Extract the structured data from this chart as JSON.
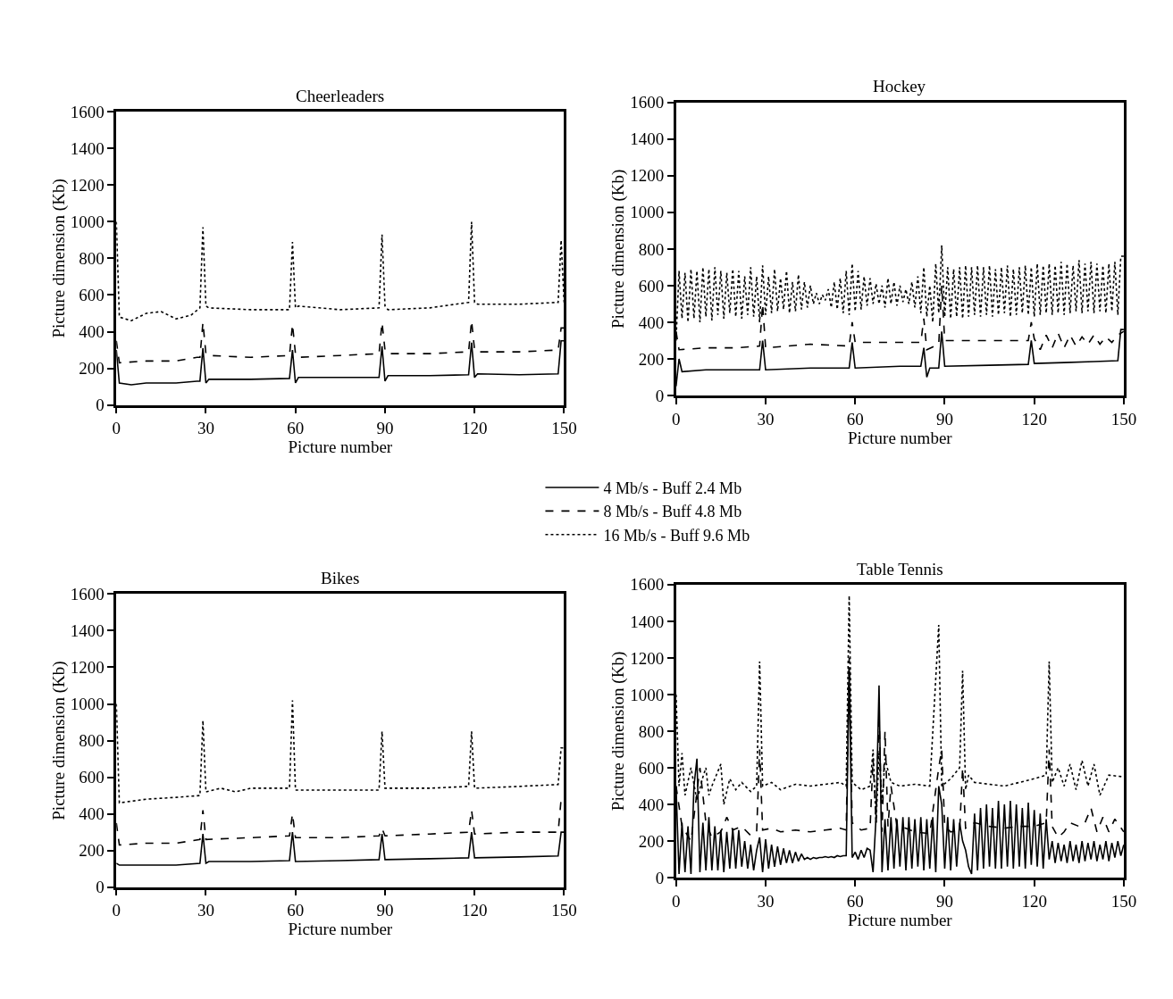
{
  "chart_data": [
    {
      "type": "line",
      "title": "Cheerleaders",
      "xlabel": "Picture number",
      "ylabel": "Picture dimension (Kb)",
      "xlim": [
        0,
        150
      ],
      "xticks": [
        0,
        30,
        60,
        90,
        120,
        150
      ],
      "ylim": [
        0,
        1600
      ],
      "yticks": [
        0,
        200,
        400,
        600,
        800,
        1000,
        1200,
        1400,
        1600
      ],
      "grid": false,
      "legend": "bottom right",
      "marker": "none",
      "series": [
        {
          "name": "4 Mb/s - Buff 2.4 Mb",
          "color": "#000000",
          "line_style": "solid",
          "x": [
            0,
            1,
            5,
            10,
            20,
            27,
            28,
            29,
            30,
            31,
            45,
            58,
            59,
            60,
            61,
            75,
            88,
            89,
            90,
            91,
            105,
            118,
            119,
            120,
            121,
            135,
            148,
            149,
            150
          ],
          "values": [
            300,
            120,
            110,
            120,
            120,
            130,
            130,
            310,
            120,
            140,
            140,
            145,
            300,
            120,
            150,
            150,
            150,
            320,
            130,
            160,
            160,
            165,
            340,
            150,
            170,
            165,
            170,
            350,
            350
          ]
        },
        {
          "name": "8 Mb/s - Buff 4.8 Mb",
          "color": "#000000",
          "line_style": "dashed",
          "x": [
            0,
            1,
            10,
            20,
            27,
            28,
            29,
            30,
            31,
            45,
            58,
            59,
            60,
            61,
            75,
            88,
            89,
            90,
            91,
            105,
            118,
            119,
            120,
            121,
            135,
            148,
            149,
            150
          ],
          "values": [
            350,
            230,
            240,
            240,
            260,
            260,
            450,
            280,
            270,
            260,
            270,
            440,
            280,
            260,
            270,
            280,
            450,
            300,
            280,
            280,
            290,
            460,
            300,
            290,
            290,
            300,
            420,
            420
          ]
        },
        {
          "name": "16 Mb/s - Buff 9.6 Mb",
          "color": "#000000",
          "line_style": "dotted",
          "x": [
            0,
            1,
            5,
            10,
            15,
            20,
            25,
            28,
            29,
            30,
            31,
            45,
            58,
            59,
            60,
            61,
            75,
            88,
            89,
            90,
            91,
            105,
            118,
            119,
            120,
            121,
            135,
            148,
            149,
            150
          ],
          "values": [
            1000,
            480,
            460,
            500,
            510,
            470,
            490,
            530,
            970,
            540,
            530,
            520,
            520,
            890,
            530,
            540,
            520,
            530,
            930,
            540,
            520,
            530,
            560,
            1000,
            560,
            550,
            550,
            560,
            900,
            560
          ]
        }
      ]
    },
    {
      "type": "line",
      "title": "Hockey",
      "xlabel": "Picture number",
      "ylabel": "Picture dimension (Kb)",
      "xlim": [
        0,
        150
      ],
      "xticks": [
        0,
        30,
        60,
        90,
        120,
        150
      ],
      "ylim": [
        0,
        1600
      ],
      "yticks": [
        0,
        200,
        400,
        600,
        800,
        1000,
        1200,
        1400,
        1600
      ],
      "grid": false,
      "marker": "none",
      "series": [
        {
          "color": "#000000",
          "line_style": "solid",
          "x": [
            0,
            1,
            2,
            10,
            28,
            29,
            30,
            45,
            58,
            59,
            60,
            75,
            82,
            83,
            84,
            85,
            88,
            89,
            90,
            105,
            118,
            119,
            120,
            130,
            140,
            148,
            149,
            150
          ],
          "values": [
            50,
            200,
            130,
            140,
            140,
            300,
            140,
            150,
            150,
            290,
            150,
            160,
            160,
            260,
            100,
            150,
            150,
            350,
            160,
            165,
            170,
            300,
            175,
            180,
            185,
            190,
            360,
            360
          ]
        },
        {
          "color": "#000000",
          "line_style": "dashed",
          "x": [
            0,
            1,
            10,
            20,
            28,
            29,
            30,
            45,
            58,
            59,
            60,
            75,
            82,
            83,
            84,
            88,
            89,
            90,
            105,
            118,
            119,
            120,
            122,
            124,
            126,
            128,
            130,
            132,
            134,
            136,
            138,
            140,
            142,
            144,
            146,
            148,
            150
          ],
          "values": [
            350,
            250,
            260,
            260,
            270,
            500,
            260,
            280,
            270,
            400,
            290,
            290,
            290,
            420,
            250,
            280,
            600,
            300,
            300,
            300,
            400,
            310,
            250,
            330,
            260,
            340,
            260,
            330,
            270,
            320,
            280,
            330,
            280,
            320,
            290,
            330,
            350
          ]
        },
        {
          "color": "#000000",
          "line_style": "dotted",
          "x": [
            0,
            1,
            2,
            3,
            4,
            5,
            6,
            7,
            8,
            9,
            10,
            11,
            12,
            13,
            14,
            15,
            16,
            17,
            18,
            19,
            20,
            21,
            22,
            23,
            24,
            25,
            26,
            27,
            28,
            29,
            30,
            31,
            32,
            33,
            34,
            35,
            36,
            37,
            38,
            39,
            40,
            41,
            42,
            43,
            44,
            45,
            46,
            47,
            48,
            49,
            50,
            51,
            52,
            53,
            54,
            55,
            56,
            57,
            58,
            59,
            60,
            61,
            62,
            63,
            64,
            65,
            66,
            67,
            68,
            69,
            70,
            71,
            72,
            73,
            74,
            75,
            76,
            77,
            78,
            79,
            80,
            81,
            82,
            83,
            84,
            85,
            86,
            87,
            88,
            89,
            90,
            91,
            92,
            93,
            94,
            95,
            96,
            97,
            98,
            99,
            100,
            101,
            102,
            103,
            104,
            105,
            106,
            107,
            108,
            109,
            110,
            111,
            112,
            113,
            114,
            115,
            116,
            117,
            118,
            119,
            120,
            121,
            122,
            123,
            124,
            125,
            126,
            127,
            128,
            129,
            130,
            131,
            132,
            133,
            134,
            135,
            136,
            137,
            138,
            139,
            140,
            141,
            142,
            143,
            144,
            145,
            146,
            147,
            148,
            149,
            150
          ],
          "values": [
            300,
            680,
            420,
            670,
            400,
            690,
            420,
            680,
            400,
            700,
            430,
            690,
            410,
            700,
            440,
            680,
            420,
            670,
            450,
            690,
            430,
            680,
            420,
            650,
            440,
            700,
            430,
            650,
            400,
            710,
            440,
            650,
            450,
            690,
            460,
            640,
            470,
            680,
            450,
            620,
            460,
            660,
            470,
            620,
            480,
            600,
            500,
            560,
            500,
            550,
            520,
            580,
            480,
            620,
            470,
            640,
            450,
            680,
            440,
            720,
            460,
            680,
            470,
            650,
            490,
            640,
            500,
            610,
            500,
            600,
            480,
            640,
            500,
            620,
            490,
            600,
            510,
            580,
            500,
            620,
            480,
            650,
            450,
            700,
            430,
            600,
            400,
            720,
            450,
            820,
            430,
            700,
            420,
            690,
            430,
            700,
            420,
            710,
            430,
            700,
            440,
            710,
            430,
            700,
            440,
            710,
            430,
            690,
            440,
            700,
            450,
            710,
            430,
            690,
            440,
            700,
            450,
            710,
            440,
            700,
            430,
            720,
            440,
            710,
            450,
            720,
            440,
            710,
            450,
            730,
            440,
            720,
            450,
            710,
            460,
            740,
            450,
            720,
            460,
            730,
            450,
            720,
            460,
            710,
            450,
            720,
            460,
            730,
            440,
            760,
            760
          ]
        }
      ]
    },
    {
      "type": "line",
      "title": "Bikes",
      "xlabel": "Picture number",
      "ylabel": "Picture dimension (Kb)",
      "xlim": [
        0,
        150
      ],
      "xticks": [
        0,
        30,
        60,
        90,
        120,
        150
      ],
      "ylim": [
        0,
        1600
      ],
      "yticks": [
        0,
        200,
        400,
        600,
        800,
        1000,
        1200,
        1400,
        1600
      ],
      "grid": false,
      "marker": "none",
      "series": [
        {
          "color": "#000000",
          "line_style": "solid",
          "x": [
            0,
            1,
            10,
            20,
            28,
            29,
            30,
            31,
            45,
            58,
            59,
            60,
            75,
            88,
            89,
            90,
            105,
            118,
            119,
            120,
            135,
            148,
            149,
            150
          ],
          "values": [
            130,
            120,
            120,
            120,
            130,
            290,
            130,
            140,
            140,
            145,
            300,
            140,
            145,
            150,
            290,
            150,
            155,
            160,
            300,
            160,
            165,
            170,
            300,
            300
          ]
        },
        {
          "color": "#000000",
          "line_style": "dashed",
          "x": [
            0,
            1,
            10,
            20,
            28,
            29,
            30,
            45,
            58,
            59,
            60,
            75,
            88,
            89,
            90,
            105,
            118,
            119,
            120,
            135,
            148,
            149,
            150
          ],
          "values": [
            350,
            230,
            240,
            240,
            260,
            420,
            260,
            270,
            280,
            400,
            270,
            270,
            280,
            320,
            280,
            290,
            300,
            420,
            290,
            300,
            300,
            480,
            480
          ]
        },
        {
          "color": "#000000",
          "line_style": "dotted",
          "x": [
            0,
            1,
            10,
            20,
            28,
            29,
            30,
            35,
            40,
            45,
            58,
            59,
            60,
            75,
            88,
            89,
            90,
            105,
            118,
            119,
            120,
            135,
            148,
            149,
            150
          ],
          "values": [
            1000,
            460,
            480,
            490,
            500,
            910,
            520,
            540,
            520,
            540,
            540,
            1020,
            530,
            530,
            530,
            850,
            540,
            540,
            550,
            850,
            540,
            550,
            560,
            760,
            760
          ]
        }
      ]
    },
    {
      "type": "line",
      "title": "Table Tennis",
      "xlabel": "Picture number",
      "ylabel": "Picture dimension (Kb)",
      "xlim": [
        0,
        150
      ],
      "xticks": [
        0,
        30,
        60,
        90,
        120,
        150
      ],
      "ylim": [
        0,
        1600
      ],
      "yticks": [
        0,
        200,
        400,
        600,
        800,
        1000,
        1200,
        1400,
        1600
      ],
      "grid": false,
      "marker": "none",
      "series": [
        {
          "color": "#000000",
          "line_style": "solid",
          "x": [
            0,
            1,
            2,
            3,
            4,
            5,
            6,
            7,
            8,
            9,
            10,
            11,
            12,
            13,
            14,
            15,
            16,
            17,
            18,
            19,
            20,
            21,
            22,
            23,
            24,
            25,
            26,
            27,
            28,
            29,
            30,
            31,
            32,
            33,
            34,
            35,
            36,
            37,
            38,
            39,
            40,
            41,
            42,
            43,
            44,
            45,
            46,
            47,
            48,
            49,
            50,
            51,
            52,
            53,
            54,
            55,
            56,
            57,
            58,
            59,
            60,
            61,
            62,
            63,
            64,
            65,
            66,
            67,
            68,
            69,
            70,
            71,
            72,
            73,
            74,
            75,
            76,
            77,
            78,
            79,
            80,
            81,
            82,
            83,
            84,
            85,
            86,
            87,
            88,
            89,
            90,
            91,
            92,
            93,
            94,
            95,
            96,
            97,
            98,
            99,
            100,
            101,
            102,
            103,
            104,
            105,
            106,
            107,
            108,
            109,
            110,
            111,
            112,
            113,
            114,
            115,
            116,
            117,
            118,
            119,
            120,
            121,
            122,
            123,
            124,
            125,
            126,
            127,
            128,
            129,
            130,
            131,
            132,
            133,
            134,
            135,
            136,
            137,
            138,
            139,
            140,
            141,
            142,
            143,
            144,
            145,
            146,
            147,
            148,
            149,
            150
          ],
          "values": [
            500,
            20,
            300,
            30,
            280,
            20,
            500,
            650,
            30,
            300,
            40,
            330,
            40,
            280,
            40,
            260,
            30,
            250,
            50,
            270,
            50,
            260,
            60,
            200,
            50,
            180,
            40,
            150,
            220,
            30,
            210,
            50,
            180,
            60,
            170,
            70,
            160,
            80,
            150,
            80,
            140,
            90,
            130,
            100,
            110,
            100,
            110,
            105,
            110,
            110,
            115,
            110,
            115,
            110,
            120,
            115,
            120,
            120,
            1150,
            110,
            140,
            100,
            150,
            110,
            160,
            150,
            30,
            330,
            1050,
            30,
            320,
            40,
            330,
            50,
            320,
            60,
            330,
            40,
            330,
            50,
            320,
            60,
            330,
            40,
            320,
            50,
            330,
            30,
            500,
            400,
            50,
            330,
            40,
            320,
            60,
            300,
            200,
            150,
            60,
            20,
            350,
            40,
            380,
            50,
            400,
            60,
            380,
            50,
            420,
            50,
            400,
            60,
            420,
            50,
            400,
            60,
            380,
            50,
            410,
            70,
            370,
            60,
            350,
            50,
            320,
            100,
            200,
            80,
            190,
            90,
            180,
            80,
            200,
            90,
            180,
            80,
            200,
            90,
            190,
            100,
            200,
            90,
            180,
            100,
            200,
            90,
            190,
            110,
            200,
            120,
            180
          ]
        },
        {
          "color": "#000000",
          "line_style": "dashed",
          "x": [
            0,
            2,
            5,
            8,
            10,
            12,
            15,
            17,
            19,
            22,
            25,
            27,
            28,
            29,
            32,
            35,
            40,
            45,
            50,
            55,
            57,
            58,
            59,
            62,
            65,
            66,
            67,
            68,
            69,
            70,
            71,
            72,
            74,
            77,
            80,
            85,
            88,
            89,
            90,
            92,
            95,
            96,
            97,
            100,
            105,
            110,
            115,
            120,
            124,
            125,
            126,
            128,
            130,
            132,
            135,
            137,
            139,
            141,
            143,
            145,
            147,
            150
          ],
          "values": [
            500,
            280,
            200,
            600,
            300,
            220,
            250,
            330,
            260,
            280,
            230,
            250,
            700,
            260,
            270,
            250,
            260,
            250,
            260,
            270,
            260,
            1200,
            300,
            260,
            270,
            650,
            300,
            900,
            250,
            800,
            280,
            500,
            280,
            270,
            250,
            240,
            600,
            700,
            280,
            250,
            260,
            600,
            270,
            300,
            280,
            270,
            280,
            280,
            300,
            700,
            280,
            220,
            250,
            300,
            280,
            300,
            380,
            250,
            330,
            250,
            320,
            250
          ]
        },
        {
          "color": "#000000",
          "line_style": "dotted",
          "x": [
            0,
            1,
            2,
            3,
            5,
            7,
            9,
            10,
            11,
            12,
            15,
            16,
            18,
            20,
            22,
            25,
            27,
            28,
            29,
            32,
            35,
            40,
            45,
            50,
            55,
            57,
            58,
            59,
            62,
            65,
            66,
            67,
            68,
            69,
            70,
            72,
            75,
            80,
            85,
            88,
            89,
            92,
            95,
            96,
            97,
            98,
            100,
            105,
            110,
            115,
            120,
            124,
            125,
            126,
            128,
            130,
            132,
            134,
            136,
            138,
            140,
            142,
            145,
            150
          ],
          "values": [
            1000,
            500,
            680,
            450,
            600,
            420,
            550,
            600,
            450,
            500,
            620,
            400,
            540,
            480,
            520,
            470,
            500,
            1180,
            500,
            520,
            480,
            510,
            500,
            510,
            520,
            500,
            1540,
            520,
            480,
            500,
            700,
            300,
            680,
            400,
            650,
            520,
            500,
            510,
            500,
            1380,
            500,
            540,
            600,
            1130,
            480,
            560,
            520,
            510,
            500,
            520,
            540,
            560,
            1180,
            520,
            600,
            500,
            620,
            480,
            640,
            500,
            620,
            450,
            560,
            550
          ]
        }
      ]
    }
  ]
}
